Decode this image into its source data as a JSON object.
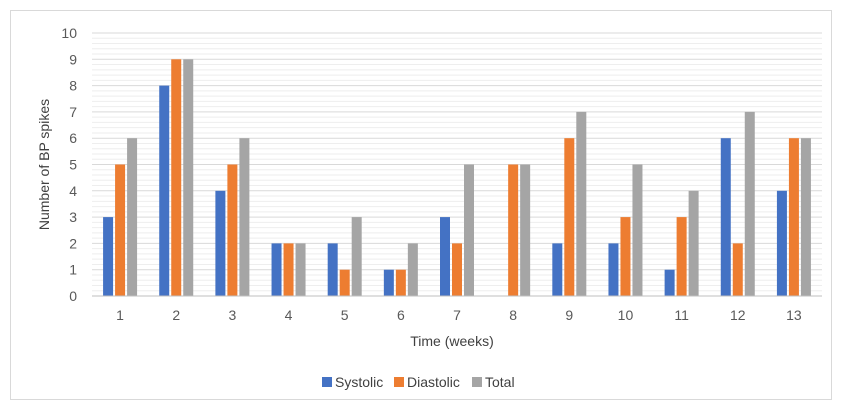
{
  "chart_data": {
    "type": "bar",
    "title": "",
    "xlabel": "Time (weeks)",
    "ylabel": "Number of BP spikes",
    "ylim": [
      0,
      10
    ],
    "yticks": [
      0,
      1,
      2,
      3,
      4,
      5,
      6,
      7,
      8,
      9,
      10
    ],
    "minor_grid_step": 0.2,
    "grid": true,
    "legend_position": "bottom",
    "categories": [
      "1",
      "2",
      "3",
      "4",
      "5",
      "6",
      "7",
      "8",
      "9",
      "10",
      "11",
      "12",
      "13"
    ],
    "series": [
      {
        "name": "Systolic",
        "color": "#4472c4",
        "values": [
          3,
          8,
          4,
          2,
          2,
          1,
          3,
          0,
          2,
          2,
          1,
          6,
          4
        ]
      },
      {
        "name": "Diastolic",
        "color": "#ed7d31",
        "values": [
          5,
          9,
          5,
          2,
          1,
          1,
          2,
          5,
          6,
          3,
          3,
          2,
          6
        ]
      },
      {
        "name": "Total",
        "color": "#a5a5a5",
        "values": [
          6,
          9,
          6,
          2,
          3,
          2,
          5,
          5,
          7,
          5,
          4,
          7,
          6
        ]
      }
    ]
  }
}
